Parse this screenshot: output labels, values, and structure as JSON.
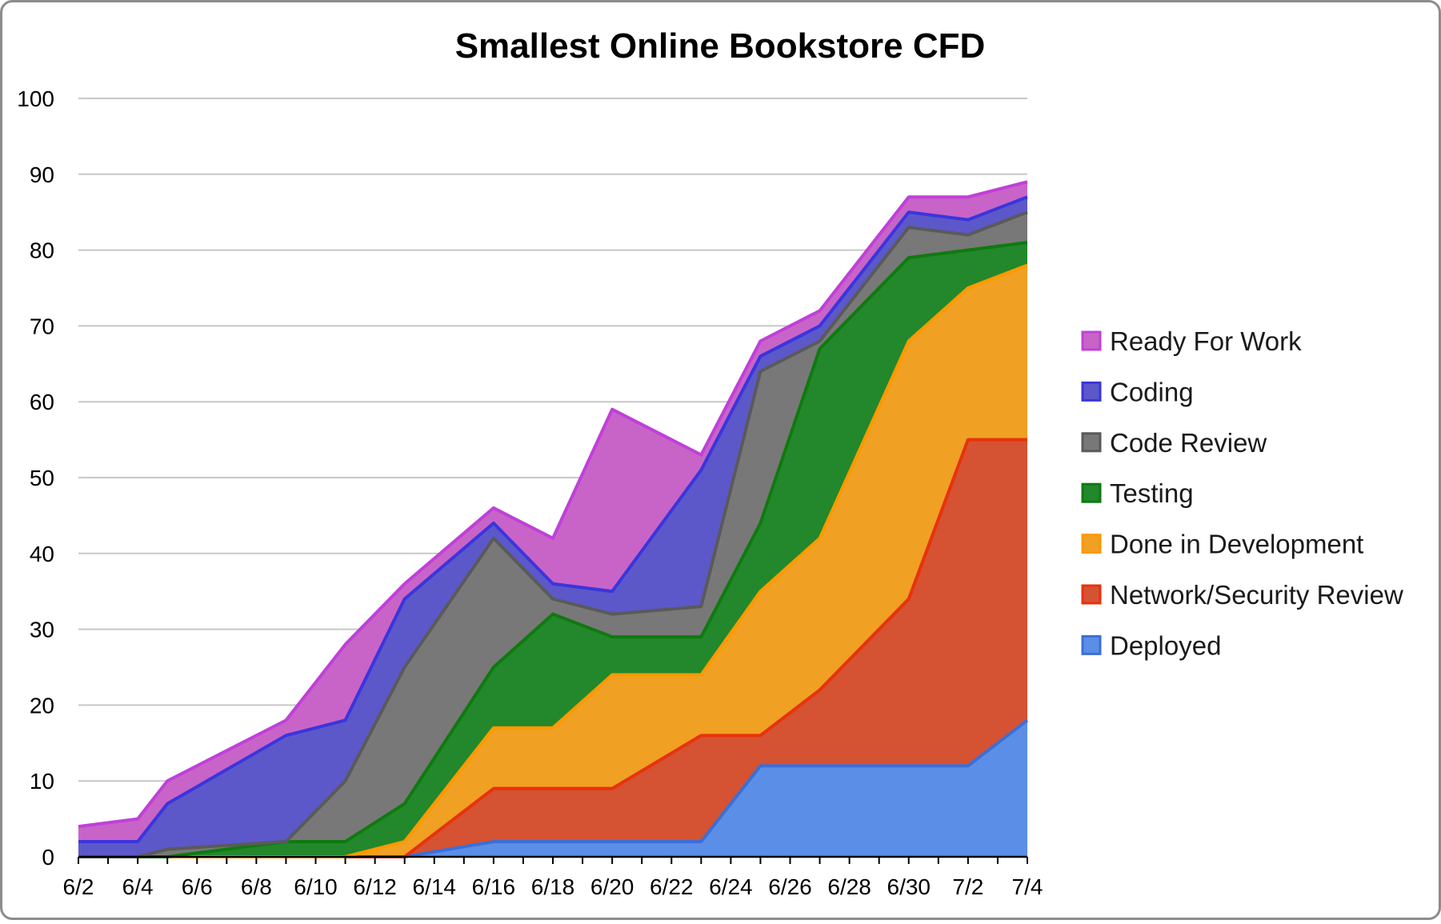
{
  "chart_data": {
    "type": "area",
    "stacked": true,
    "title": "Smallest Online Bookstore CFD",
    "xlabel": "",
    "ylabel": "",
    "ylim": [
      0,
      100
    ],
    "yticks": [
      "0",
      "10",
      "20",
      "30",
      "40",
      "50",
      "60",
      "70",
      "80",
      "90",
      "100"
    ],
    "x_tick_labels": [
      "6/2",
      "6/4",
      "6/6",
      "6/8",
      "6/10",
      "6/12",
      "6/14",
      "6/16",
      "6/18",
      "6/20",
      "6/22",
      "6/24",
      "6/26",
      "6/28",
      "6/30",
      "7/2",
      "7/4"
    ],
    "x_range": [
      "6/2",
      "7/4"
    ],
    "x": [
      "6/2",
      "6/4",
      "6/5",
      "6/9",
      "6/11",
      "6/13",
      "6/16",
      "6/18",
      "6/20",
      "6/23",
      "6/25",
      "6/27",
      "6/30",
      "7/2",
      "7/4"
    ],
    "grid": true,
    "legend_position": "right",
    "series": [
      {
        "name": "Deployed",
        "color": "#5b8ee6",
        "line_color": "#3b6fd8",
        "values": [
          0,
          0,
          0,
          0,
          0,
          0,
          2,
          2,
          2,
          2,
          12,
          12,
          12,
          12,
          18
        ]
      },
      {
        "name": "Network/Security Review",
        "color": "#d55232",
        "line_color": "#e8320c",
        "values": [
          0,
          0,
          0,
          0,
          0,
          0,
          7,
          7,
          7,
          14,
          4,
          10,
          22,
          43,
          37
        ]
      },
      {
        "name": "Done in Development",
        "color": "#f0a023",
        "line_color": "#ff9900",
        "values": [
          0,
          0,
          0,
          0,
          0,
          2,
          8,
          8,
          15,
          8,
          19,
          20,
          34,
          20,
          23
        ]
      },
      {
        "name": "Testing",
        "color": "#22882b",
        "line_color": "#0f7a0f",
        "values": [
          0,
          0,
          0,
          2,
          2,
          5,
          8,
          15,
          5,
          5,
          9,
          25,
          11,
          5,
          3
        ]
      },
      {
        "name": "Code Review",
        "color": "#787878",
        "line_color": "#5a5a5a",
        "values": [
          0,
          0,
          1,
          0,
          8,
          18,
          17,
          2,
          3,
          4,
          20,
          1,
          4,
          2,
          4
        ]
      },
      {
        "name": "Coding",
        "color": "#5c58c9",
        "line_color": "#3a35dd",
        "values": [
          2,
          2,
          6,
          14,
          8,
          9,
          2,
          2,
          3,
          18,
          2,
          2,
          2,
          2,
          2
        ]
      },
      {
        "name": "Ready For Work",
        "color": "#c864c8",
        "line_color": "#c040d8",
        "values": [
          2,
          3,
          3,
          2,
          10,
          2,
          2,
          6,
          24,
          2,
          2,
          2,
          2,
          3,
          2
        ]
      }
    ]
  }
}
